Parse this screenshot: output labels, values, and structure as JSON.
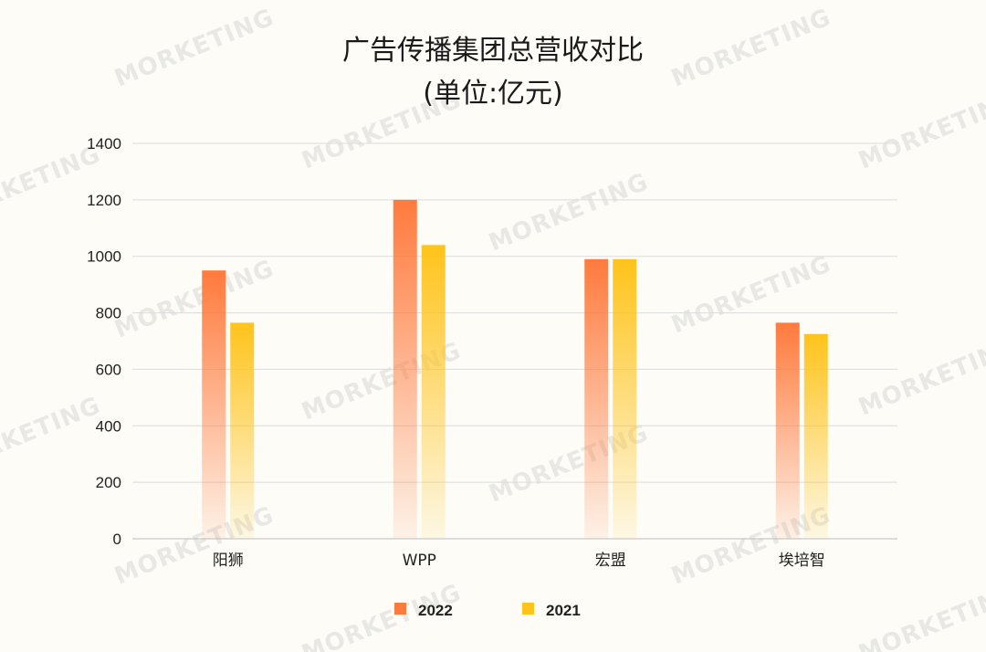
{
  "chart_data": {
    "type": "bar",
    "title": "广告传播集团总营收对比",
    "subtitle": "(单位:亿元)",
    "categories": [
      "阳狮",
      "WPP",
      "宏盟",
      "埃培智"
    ],
    "series": [
      {
        "name": "2022",
        "values": [
          950,
          1200,
          990,
          765
        ],
        "color": "#ff7a3d"
      },
      {
        "name": "2021",
        "values": [
          765,
          1040,
          990,
          725
        ],
        "color": "#ffc31a"
      }
    ],
    "ylim": [
      0,
      1400
    ],
    "yticks": [
      0,
      200,
      400,
      600,
      800,
      1000,
      1200,
      1400
    ],
    "grid": true,
    "legend_position": "bottom"
  },
  "watermark": "MORKETING"
}
